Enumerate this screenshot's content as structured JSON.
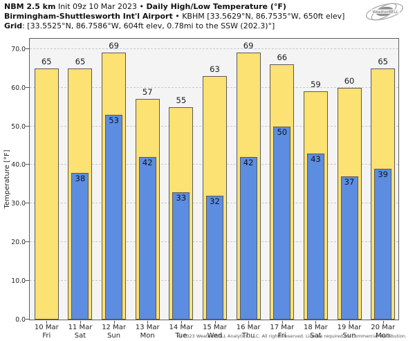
{
  "header": {
    "l1_bold": "NBM 2.5 km",
    "l1_reg": " Init 09z 10 Mar 2023 • ",
    "l1_bold2": "Daily High/Low Temperature (°F)",
    "l2_bold": "Birmingham-Shuttlesworth Int'l Airport",
    "l2_reg": " • KBHM [33.5629°N, 86.7535°W, 650ft elev]",
    "l3_bold": "Grid",
    "l3_reg": ": [33.5525°N, 86.7586°W, 604ft elev, 0.78mi to the SSW (202.3)°]"
  },
  "logo": {
    "text": "WeatherBELL"
  },
  "chart_data": {
    "type": "bar",
    "title": "Daily High/Low Temperature (°F)",
    "xlabel": "",
    "ylabel": "Temperature [°F]",
    "ylim": [
      0,
      73
    ],
    "yticks": [
      0,
      10,
      20,
      30,
      40,
      50,
      60,
      70
    ],
    "ytick_format": "one_decimal",
    "grid": "horizontal dashed",
    "legend": "none",
    "categories": [
      "10 Mar",
      "11 Mar",
      "12 Mar",
      "13 Mar",
      "14 Mar",
      "15 Mar",
      "16 Mar",
      "17 Mar",
      "18 Mar",
      "19 Mar",
      "20 Mar"
    ],
    "day_labels": [
      "Fri",
      "Sat",
      "Sun",
      "Mon",
      "Tue",
      "Wed",
      "Thu",
      "Fri",
      "Sat",
      "Sun",
      "Mon"
    ],
    "series": [
      {
        "name": "Daily High",
        "color": "#fce173",
        "values": [
          65,
          65,
          69,
          57,
          55,
          63,
          69,
          66,
          59,
          60,
          65
        ]
      },
      {
        "name": "Daily Low",
        "color": "#5c8de1",
        "values": [
          null,
          38,
          53,
          42,
          33,
          32,
          42,
          50,
          43,
          37,
          39
        ]
      }
    ]
  },
  "footer": {
    "copyright": "© 2023 WeatherBELL Analytics, LLC. All rights reserved. License required for commercial distribution."
  }
}
